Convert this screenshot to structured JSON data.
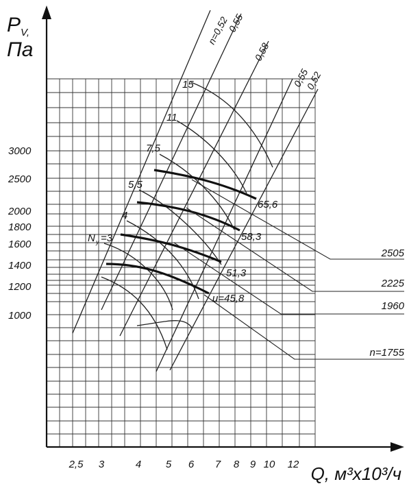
{
  "chart_data": {
    "type": "line",
    "y_axis_label": "P",
    "y_axis_label_sub": "V,",
    "y_axis_unit": "Па",
    "x_axis_label": "Q, м³х10³/ч",
    "x_ticks": [
      "2,5",
      "3",
      "4",
      "5",
      "6",
      "7",
      "8",
      "9",
      "10",
      "12"
    ],
    "y_ticks": [
      "1000",
      "1200",
      "1400",
      "1600",
      "1800",
      "2000",
      "2500",
      "3000"
    ],
    "y_log_scale": true,
    "x_log_scale": true,
    "efficiency_lines": [
      {
        "label": "n=0,52"
      },
      {
        "label": "0,55"
      },
      {
        "label": "0,58"
      },
      {
        "label": "0,55"
      },
      {
        "label": "0,52"
      }
    ],
    "power_labels": [
      "15",
      "11",
      "7,5",
      "5,5",
      "4",
      "N",
      "=3"
    ],
    "power_label_sub": "y",
    "speed_series": [
      {
        "name": "n=1755",
        "u_label": "u=45,8"
      },
      {
        "name": "1960",
        "u_label": "51,3"
      },
      {
        "name": "2225",
        "u_label": "58,3"
      },
      {
        "name": "2505",
        "u_label": "65,6"
      }
    ],
    "grid": true
  }
}
